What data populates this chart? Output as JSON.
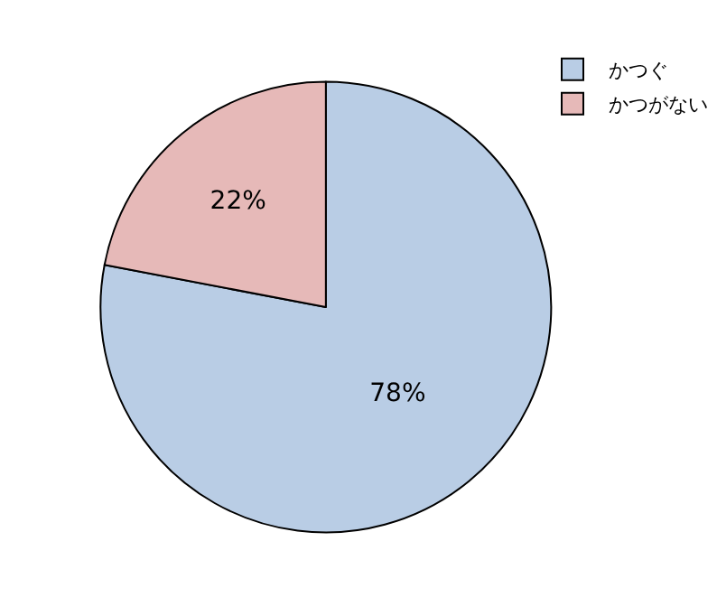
{
  "chart_data": {
    "type": "pie",
    "categories": [
      "かつぐ",
      "かつがない"
    ],
    "values": [
      78,
      22
    ],
    "value_labels": [
      "78%",
      "22%"
    ],
    "colors": [
      "#b9cde5",
      "#e6b9b8"
    ],
    "legend": "top right"
  }
}
